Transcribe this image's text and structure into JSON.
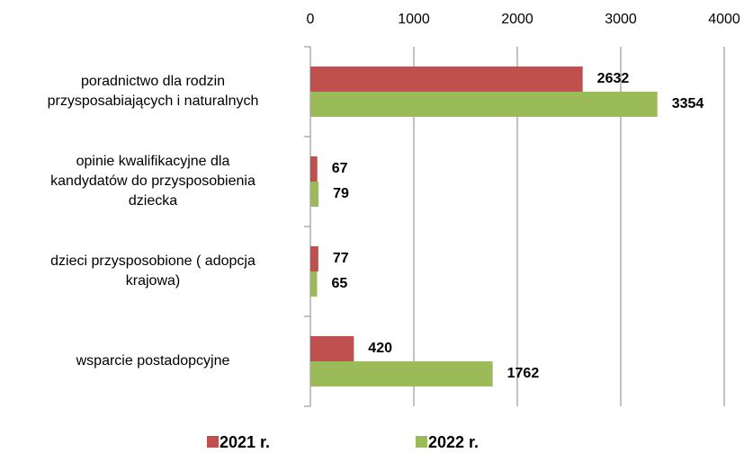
{
  "chart_data": {
    "type": "bar",
    "orientation": "horizontal",
    "categories": [
      [
        "poradnictwo dla rodzin",
        "przysposabiających i naturalnych"
      ],
      [
        "opinie kwalifikacyjne dla",
        "kandydatów do przysposobienia",
        "dziecka"
      ],
      [
        "dzieci przysposobione ( adopcja",
        "krajowa)"
      ],
      [
        "wsparcie postadopcyjne"
      ]
    ],
    "series": [
      {
        "name": "2021 r.",
        "color": "#c0504d",
        "values": [
          2632,
          67,
          77,
          420
        ]
      },
      {
        "name": "2022 r.",
        "color": "#9bbb59",
        "values": [
          3354,
          79,
          65,
          1762
        ]
      }
    ],
    "xlim": [
      0,
      4000
    ],
    "xticks": [
      0,
      1000,
      2000,
      3000,
      4000
    ],
    "grid": true,
    "legend": "bottom"
  }
}
